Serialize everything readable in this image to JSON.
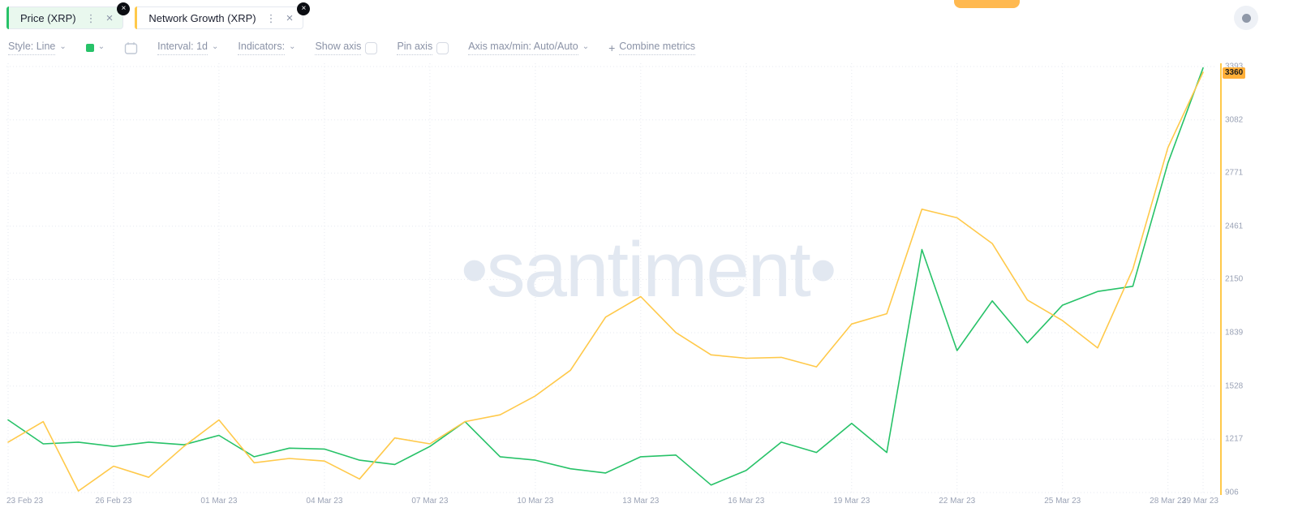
{
  "icons": {
    "chevron": "⌄",
    "kebab": "⋮",
    "close": "×",
    "plus": "+",
    "remove": "×"
  },
  "metric_chips": [
    {
      "label": "Price (XRP)",
      "accent_color": "#27c268",
      "background": "#e9f8ee"
    },
    {
      "label": "Network Growth (XRP)",
      "accent_color": "#ffc94a",
      "background": "#ffffff"
    }
  ],
  "toolbar": {
    "style": "Style: Line",
    "interval": "Interval: 1d",
    "indicators": "Indicators:",
    "show_axis": "Show axis",
    "pin_axis": "Pin axis",
    "axis_maxmin": "Axis max/min: Auto/Auto",
    "combine_metrics": "Combine metrics",
    "swatch_color": "#27c268"
  },
  "chart": {
    "watermark": "•santiment•",
    "current_value_badge": "3360",
    "badge_color": "#ffaf38"
  },
  "chart_data": {
    "type": "line",
    "title": "",
    "x_tick_labels": [
      "23 Feb 23",
      "26 Feb 23",
      "01 Mar 23",
      "04 Mar 23",
      "07 Mar 23",
      "10 Mar 23",
      "13 Mar 23",
      "16 Mar 23",
      "19 Mar 23",
      "22 Mar 23",
      "25 Mar 23",
      "28 Mar 23",
      "29 Mar 23"
    ],
    "x_tick_days": [
      0,
      3,
      6,
      9,
      12,
      15,
      18,
      21,
      24,
      27,
      30,
      33,
      34
    ],
    "num_points": 35,
    "y_ticks": [
      3393,
      3082,
      2771,
      2461,
      2150,
      1839,
      1528,
      1217,
      906
    ],
    "y_axis_side": "right",
    "grid": "dotted",
    "legend": "chips-top-left",
    "series": [
      {
        "name": "Price (XRP)",
        "color": "#27c268",
        "axis": "hidden",
        "note": "price axis hidden; values expressed in right-axis visual units",
        "values": [
          1330,
          1190,
          1200,
          1175,
          1200,
          1185,
          1240,
          1115,
          1165,
          1160,
          1095,
          1070,
          1175,
          1320,
          1115,
          1095,
          1045,
          1020,
          1115,
          1125,
          950,
          1035,
          1200,
          1140,
          1310,
          1140,
          2325,
          1735,
          2025,
          1780,
          2000,
          2080,
          2110,
          2830,
          3385
        ]
      },
      {
        "name": "Network Growth (XRP)",
        "color": "#ffc94a",
        "axis": "right",
        "values": [
          1200,
          1320,
          915,
          1060,
          995,
          1175,
          1330,
          1080,
          1105,
          1090,
          985,
          1225,
          1190,
          1320,
          1360,
          1470,
          1620,
          1930,
          2050,
          1840,
          1710,
          1690,
          1695,
          1640,
          1890,
          1950,
          2560,
          2510,
          2360,
          2030,
          1910,
          1750,
          2210,
          2920,
          3360
        ]
      }
    ]
  }
}
